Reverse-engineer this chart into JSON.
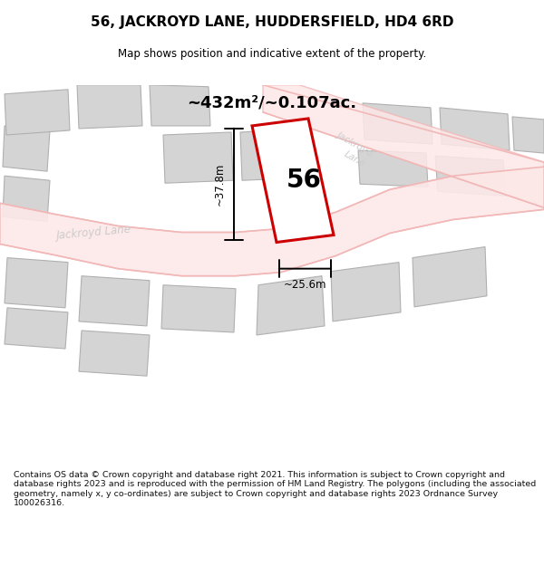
{
  "title": "56, JACKROYD LANE, HUDDERSFIELD, HD4 6RD",
  "subtitle": "Map shows position and indicative extent of the property.",
  "footer": "Contains OS data © Crown copyright and database right 2021. This information is subject to Crown copyright and database rights 2023 and is reproduced with the permission of HM Land Registry. The polygons (including the associated geometry, namely x, y co-ordinates) are subject to Crown copyright and database rights 2023 Ordnance Survey 100026316.",
  "area_label": "~432m²/~0.107ac.",
  "width_label": "~25.6m",
  "height_label": "~37.8m",
  "plot_number": "56",
  "background_color": "#ffffff",
  "road_color": "#f2b8b8",
  "road_fill_color": "#fde8e8",
  "building_color": "#d4d4d4",
  "building_edge_color": "#b0b0b0",
  "highlight_color": "#cc0000",
  "road_text_color": "#cccccc",
  "title_color": "#000000",
  "figsize": [
    6.0,
    6.25
  ],
  "dpi": 100
}
